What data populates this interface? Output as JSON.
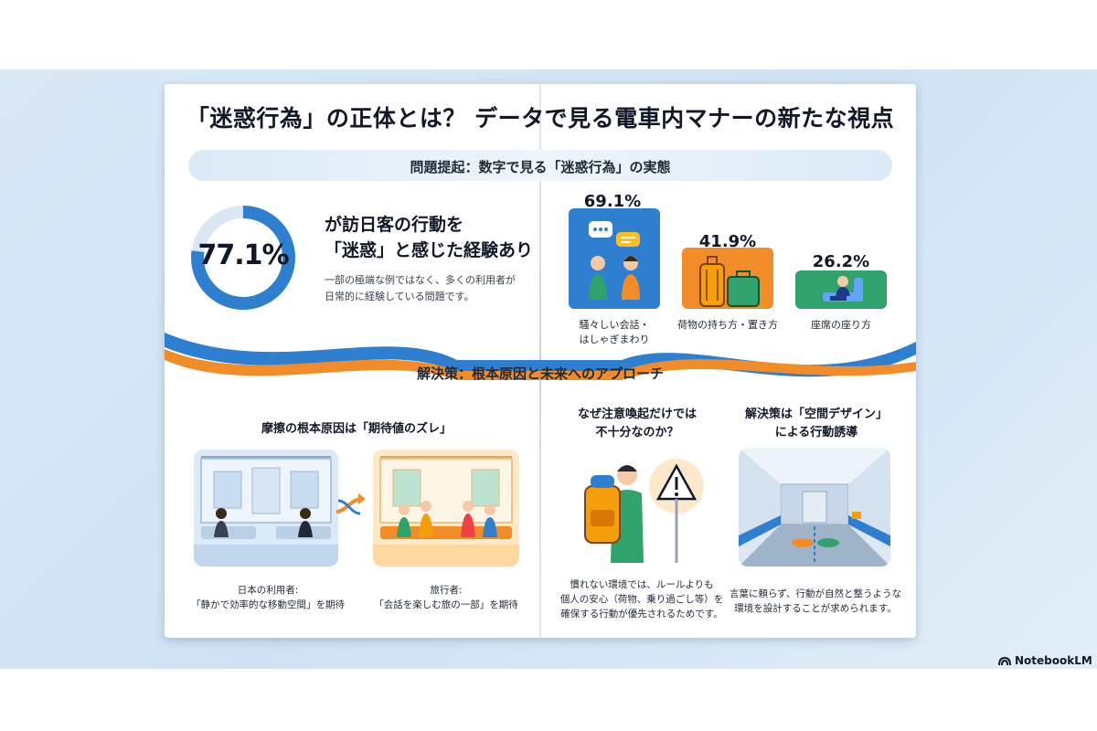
{
  "title": "「迷惑行為」の正体とは？ データで見る電車内マナーの新たな視点",
  "section1": {
    "heading": "問題提起：数字で見る「迷惑行為」の実態",
    "stat": {
      "value_label": "77.1%",
      "value": 77.1,
      "headline_line1": "が訪日客の行動を",
      "headline_line2": "「迷惑」と感じた経験あり",
      "desc_line1": "一部の極端な例ではなく、多くの利用者が",
      "desc_line2": "日常的に経験している問題です。"
    },
    "chart_data": {
      "type": "bar",
      "categories": [
        "騒々しい会話・はしゃぎまわり",
        "荷物の持ち方・置き方",
        "座席の座り方"
      ],
      "values": [
        69.1,
        41.9,
        26.2
      ],
      "value_labels": [
        "69.1%",
        "41.9%",
        "26.2%"
      ],
      "label_lines": [
        [
          "騒々しい会話・",
          "はしゃぎまわり"
        ],
        [
          "荷物の持ち方・置き方"
        ],
        [
          "座席の座り方"
        ]
      ],
      "colors": [
        "#2f7fd1",
        "#f28c28",
        "#2fa36b"
      ]
    }
  },
  "section2": {
    "heading": "解決策：根本原因と未来へのアプローチ",
    "cause": {
      "heading": "摩擦の根本原因は「期待値のズレ」",
      "left_caption_line1": "日本の利用者:",
      "left_caption_line2": "「静かで効率的な移動空間」を期待",
      "right_caption_line1": "旅行者:",
      "right_caption_line2": "「会話を楽しむ旅の一部」を期待"
    },
    "warning": {
      "heading_line1": "なぜ注意喚起だけでは",
      "heading_line2": "不十分なのか？",
      "caption_line1": "慣れない環境では、ルールよりも",
      "caption_line2": "個人の安心（荷物、乗り過ごし等）を",
      "caption_line3": "確保する行動が優先されるためです。"
    },
    "design": {
      "heading_line1": "解決策は「空間デザイン」",
      "heading_line2": "による行動誘導",
      "caption_line1": "言葉に頼らず、行動が自然と整うような",
      "caption_line2": "環境を設計することが求められます。"
    }
  },
  "brand": "NotebookLM",
  "colors": {
    "accent_blue": "#2f7fd1",
    "accent_orange": "#f28c28",
    "accent_green": "#2fa36b"
  }
}
